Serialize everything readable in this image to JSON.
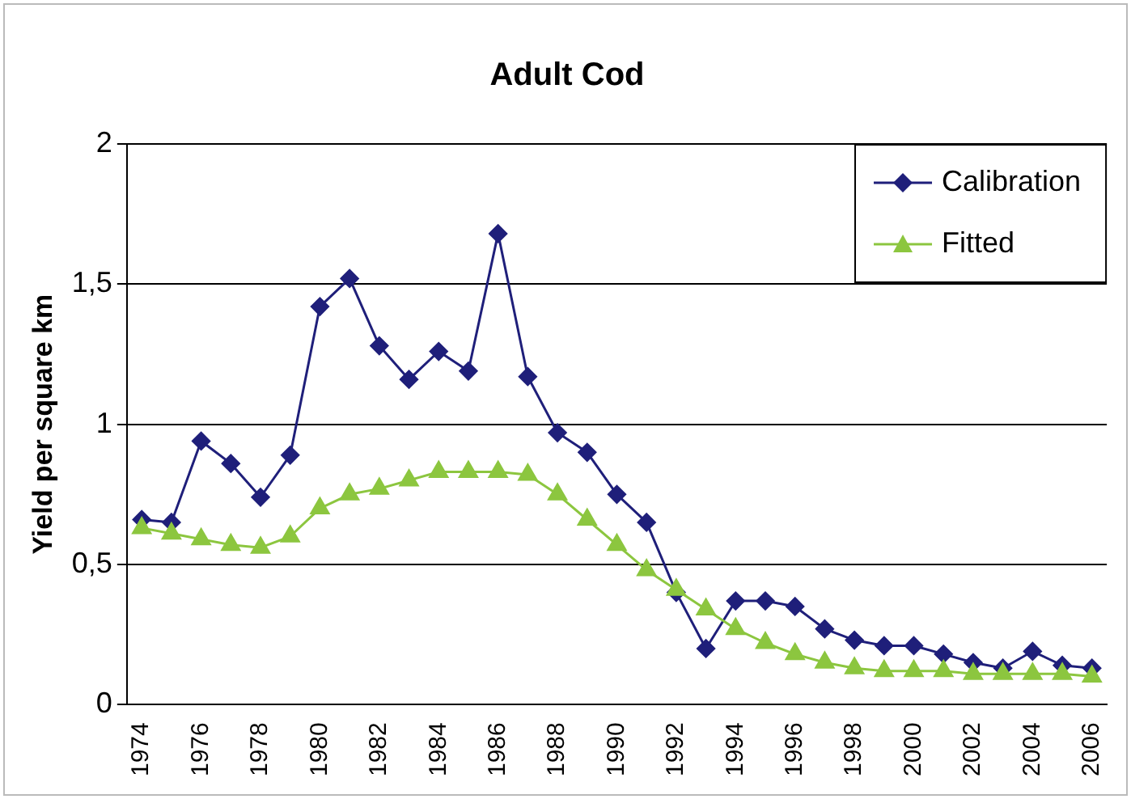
{
  "chart_data": {
    "type": "line",
    "title": "Adult Cod",
    "ylabel": "Yield per square km",
    "categories": [
      "1974",
      null,
      "1976",
      null,
      "1978",
      null,
      "1980",
      null,
      "1982",
      null,
      "1984",
      null,
      "1986",
      null,
      "1988",
      null,
      "1990",
      null,
      "1992",
      null,
      "1994",
      null,
      "1996",
      null,
      "1998",
      null,
      "2000",
      null,
      "2002",
      null,
      "2004",
      null,
      "2006"
    ],
    "series": [
      {
        "name": "Calibration",
        "color": "#1f1f7a",
        "marker": "diamond",
        "values": [
          0.66,
          0.65,
          0.94,
          0.86,
          0.74,
          0.89,
          1.42,
          1.52,
          1.28,
          1.16,
          1.26,
          1.19,
          1.68,
          1.17,
          0.97,
          0.9,
          0.75,
          0.65,
          0.4,
          0.2,
          0.37,
          0.37,
          0.35,
          0.27,
          0.23,
          0.21,
          0.21,
          0.18,
          0.15,
          0.13,
          0.19,
          0.14,
          0.13
        ]
      },
      {
        "name": "Fitted",
        "color": "#8cc63f",
        "marker": "triangle",
        "values": [
          0.63,
          0.61,
          0.59,
          0.57,
          0.56,
          0.6,
          0.7,
          0.75,
          0.77,
          0.8,
          0.83,
          0.83,
          0.83,
          0.82,
          0.75,
          0.66,
          0.57,
          0.48,
          0.41,
          0.34,
          0.27,
          0.22,
          0.18,
          0.15,
          0.13,
          0.12,
          0.12,
          0.12,
          0.11,
          0.11,
          0.11,
          0.11,
          0.1
        ]
      }
    ],
    "ylim": [
      0,
      2
    ],
    "yticks": [
      {
        "value": 0,
        "label": "0"
      },
      {
        "value": 0.5,
        "label": "0,5"
      },
      {
        "value": 1,
        "label": "1"
      },
      {
        "value": 1.5,
        "label": "1,5"
      },
      {
        "value": 2,
        "label": "2"
      }
    ],
    "grid": "y",
    "legend": "top right",
    "line_style": "solid"
  }
}
